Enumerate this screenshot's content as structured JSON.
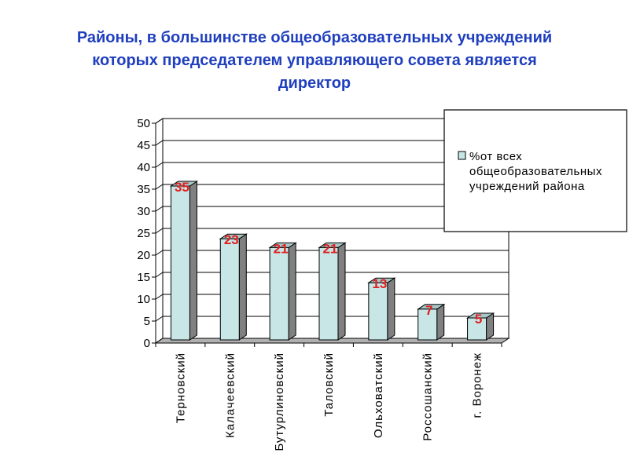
{
  "title_lines": [
    "Районы, в большинстве общеобразовательных учреждений",
    "которых председателем управляющего совета является",
    "директор"
  ],
  "legend": {
    "lines": [
      "%от всех",
      "общеобразовательных",
      "учреждений района"
    ]
  },
  "colors": {
    "title": "#1f3fbf",
    "bar_front": "#c8e6e6",
    "bar_side": "#808080",
    "bar_top": "#a8c8c8",
    "data_label": "#e02020"
  },
  "chart_data": {
    "type": "bar",
    "title": "Районы, в большинстве общеобразовательных учреждений которых председателем управляющего совета является директор",
    "categories": [
      "Терновский",
      "Калачеевский",
      "Бутурлиновский",
      "Таловский",
      "Ольховатский",
      "Россошанский",
      "г. Воронеж"
    ],
    "series": [
      {
        "name": "%от всех общеобразовательных учреждений района",
        "values": [
          35,
          23,
          21,
          21,
          13,
          7,
          5
        ]
      }
    ],
    "data_labels": [
      "35",
      "23",
      "21",
      "21",
      "13",
      "7",
      "5"
    ],
    "ylim": [
      0,
      50
    ],
    "yticks": [
      0,
      5,
      10,
      15,
      20,
      25,
      30,
      35,
      40,
      45,
      50
    ],
    "xlabel": "",
    "ylabel": "",
    "grid": true,
    "legend_position": "top-right"
  }
}
